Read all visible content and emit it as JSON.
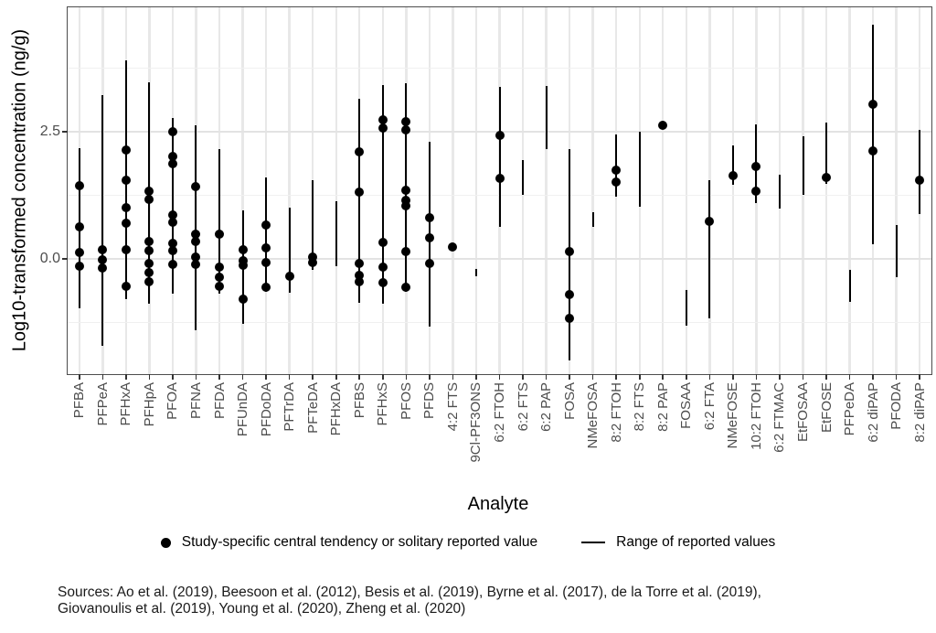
{
  "y_axis": {
    "title": "Log10-transformed concentration (ng/g)",
    "ticks": [
      {
        "label": "0.0",
        "value": 0.0
      },
      {
        "label": "2.5",
        "value": 2.5
      }
    ],
    "minor_gridlines": [
      -1.25,
      1.25,
      3.75
    ]
  },
  "x_axis": {
    "title": "Analyte"
  },
  "legend": {
    "items": [
      {
        "symbol": "dot",
        "label": "Study-specific central tendency or solitary reported value"
      },
      {
        "symbol": "line",
        "label": "Range of reported values"
      }
    ]
  },
  "sources": {
    "line1": "Sources: Ao et al. (2019), Beesoon et al. (2012), Besis et al. (2019), Byrne et al. (2017), de la Torre et al. (2019),",
    "line2": "Giovanoulis et al. (2019), Young et al. (2020), Zheng et al. (2020)"
  },
  "colors": {
    "point": "#000000",
    "range_line": "#000000",
    "grid_major": "#e3e3e3",
    "grid_minor": "#f0f0f0",
    "grid_x": "#e8e8e8",
    "panel_border": "#4d4d4d",
    "axis_text": "#4d4d4d"
  },
  "chart_data": {
    "type": "scatter",
    "title": "",
    "xlabel": "Analyte",
    "ylabel": "Log10-transformed concentration (ng/g)",
    "ylim": [
      -2.27,
      4.95
    ],
    "grid": true,
    "legend_position": "bottom",
    "series": [
      {
        "label": "PFBA",
        "points": [
          1.44,
          0.62,
          0.13,
          -0.14
        ],
        "range": [
          -0.97,
          2.18
        ]
      },
      {
        "label": "PFPeA",
        "points": [
          0.17,
          -0.02,
          -0.19
        ],
        "range": [
          -1.71,
          3.22
        ]
      },
      {
        "label": "PFHxA",
        "points": [
          2.15,
          1.55,
          1.01,
          0.7,
          0.17,
          -0.55
        ],
        "range": [
          -0.8,
          3.91
        ]
      },
      {
        "label": "PFHpA",
        "points": [
          1.34,
          1.16,
          0.34,
          0.16,
          -0.1,
          -0.28,
          -0.46
        ],
        "range": [
          -0.88,
          3.47
        ]
      },
      {
        "label": "PFOA",
        "points": [
          2.51,
          2.02,
          1.88,
          0.87,
          0.72,
          0.3,
          0.16,
          -0.11
        ],
        "range": [
          -0.68,
          2.78
        ]
      },
      {
        "label": "PFNA",
        "points": [
          1.43,
          0.48,
          0.34,
          0.04,
          -0.11
        ],
        "range": [
          -1.4,
          2.63
        ]
      },
      {
        "label": "PFDA",
        "points": [
          0.48,
          -0.17,
          -0.37,
          -0.55
        ],
        "range": [
          -0.68,
          2.16
        ]
      },
      {
        "label": "PFUnDA",
        "points": [
          0.17,
          -0.03,
          -0.13,
          -0.79
        ],
        "range": [
          -1.28,
          0.95
        ]
      },
      {
        "label": "PFDoDA",
        "points": [
          0.67,
          0.22,
          -0.07,
          -0.56
        ],
        "range": [
          -0.65,
          1.61
        ]
      },
      {
        "label": "PFTrDA",
        "points": [
          -0.34
        ],
        "range": [
          -0.67,
          1.01
        ]
      },
      {
        "label": "PFTeDA",
        "points": [
          0.04,
          -0.07
        ],
        "range": [
          -0.22,
          1.55
        ]
      },
      {
        "label": "PFHxDA",
        "points": [],
        "range": [
          -0.14,
          1.14
        ]
      },
      {
        "label": "PFBS",
        "points": [
          2.1,
          1.31,
          -0.1,
          -0.32,
          -0.46
        ],
        "range": [
          -0.86,
          3.15
        ]
      },
      {
        "label": "PFHxS",
        "points": [
          2.73,
          2.57,
          0.33,
          -0.17,
          -0.47
        ],
        "range": [
          -0.88,
          3.42
        ]
      },
      {
        "label": "PFOS",
        "points": [
          2.7,
          2.54,
          1.35,
          1.15,
          1.04,
          0.15,
          -0.56
        ],
        "range": [
          -0.65,
          3.46
        ]
      },
      {
        "label": "PFDS",
        "points": [
          0.8,
          0.41,
          -0.1
        ],
        "range": [
          -1.34,
          2.3
        ]
      },
      {
        "label": "4:2 FTS",
        "points": [
          0.23
        ],
        "range": null
      },
      {
        "label": "9Cl-PF3ONS",
        "points": [],
        "range": [
          -0.35,
          -0.2
        ]
      },
      {
        "label": "6:2 FTOH",
        "points": [
          2.43,
          1.58
        ],
        "range": [
          0.62,
          3.38
        ]
      },
      {
        "label": "6:2 FTS",
        "points": [],
        "range": [
          1.26,
          1.94
        ]
      },
      {
        "label": "6:2 PAP",
        "points": [],
        "range": [
          2.16,
          3.4
        ]
      },
      {
        "label": "FOSA",
        "points": [
          0.14,
          -0.7,
          -1.17
        ],
        "range": [
          -2.0,
          2.16
        ]
      },
      {
        "label": "NMeFOSA",
        "points": [],
        "range": [
          0.62,
          0.92
        ]
      },
      {
        "label": "8:2 FTOH",
        "points": [
          1.75,
          1.52
        ],
        "range": [
          1.22,
          2.44
        ]
      },
      {
        "label": "8:2 FTS",
        "points": [],
        "range": [
          1.03,
          2.5
        ]
      },
      {
        "label": "8:2 PAP",
        "points": [
          2.62
        ],
        "range": null
      },
      {
        "label": "FOSAA",
        "points": [],
        "range": [
          -1.32,
          -0.62
        ]
      },
      {
        "label": "6:2 FTA",
        "points": [
          0.73
        ],
        "range": [
          -1.17,
          1.54
        ]
      },
      {
        "label": "NMeFOSE",
        "points": [
          1.64
        ],
        "range": [
          1.46,
          2.24
        ]
      },
      {
        "label": "10:2 FTOH",
        "points": [
          1.82,
          1.34
        ],
        "range": [
          1.09,
          2.64
        ]
      },
      {
        "label": "6:2 FTMAC",
        "points": [],
        "range": [
          0.98,
          1.66
        ]
      },
      {
        "label": "EtFOSAA",
        "points": [],
        "range": [
          1.26,
          2.42
        ]
      },
      {
        "label": "EtFOSE",
        "points": [
          1.6
        ],
        "range": [
          1.48,
          2.68
        ]
      },
      {
        "label": "PFPeDA",
        "points": [],
        "range": [
          -0.84,
          -0.22
        ]
      },
      {
        "label": "6:2 diPAP",
        "points": [
          3.04,
          2.12
        ],
        "range": [
          0.28,
          4.6
        ]
      },
      {
        "label": "PFODA",
        "points": [],
        "range": [
          -0.36,
          0.66
        ]
      },
      {
        "label": "8:2 diPAP",
        "points": [
          1.54
        ],
        "range": [
          0.88,
          2.54
        ]
      }
    ]
  }
}
